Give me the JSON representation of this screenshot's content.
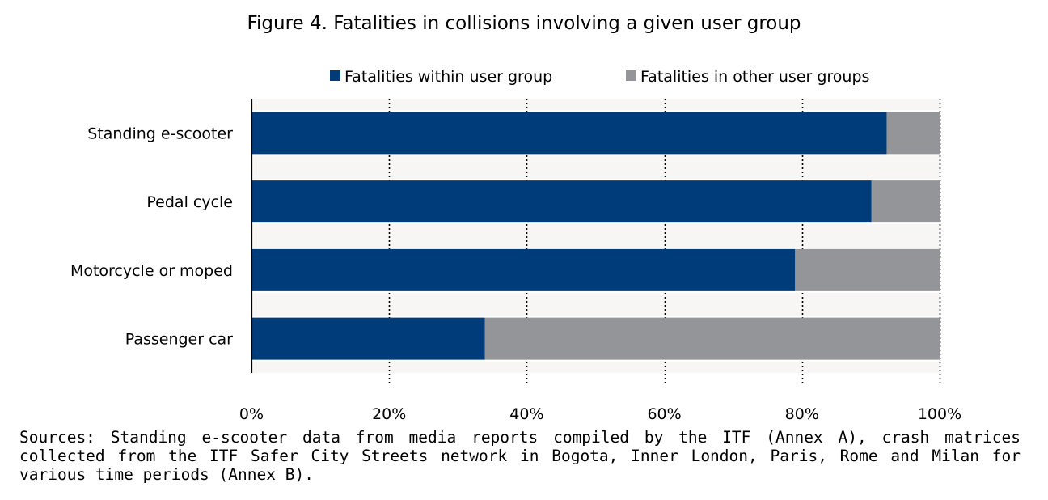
{
  "chart_data": {
    "type": "bar",
    "orientation": "horizontal",
    "stacked": true,
    "title": "Figure 4. Fatalities in collisions involving a given user group",
    "categories": [
      "Standing e-scooter",
      "Pedal cycle",
      "Motorcycle or moped",
      "Passenger car"
    ],
    "series": [
      {
        "name": "Fatalities within user group",
        "color": "#003b7a",
        "values": [
          92.3,
          90.1,
          79.0,
          33.9
        ]
      },
      {
        "name": "Fatalities in other user groups",
        "color": "#939598",
        "values": [
          7.7,
          9.9,
          21.0,
          66.1
        ]
      }
    ],
    "x_ticks": [
      "0%",
      "20%",
      "40%",
      "60%",
      "80%",
      "100%"
    ],
    "xlim": [
      0,
      100
    ],
    "grid": "vertical dotted",
    "legend_position": "top"
  },
  "source_note": "Sources: Standing e-scooter data from media reports compiled by the ITF (Annex A), crash matrices collected from the ITF Safer City Streets network in Bogota, Inner London, Paris, Rome and Milan for various time periods (Annex B)."
}
